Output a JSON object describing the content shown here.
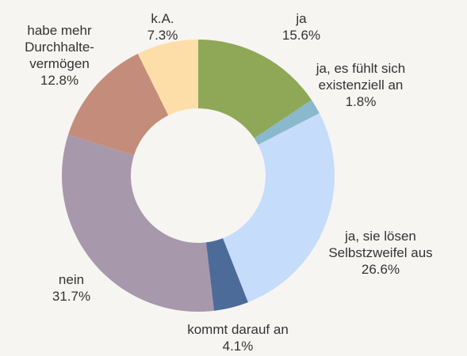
{
  "chart_data": {
    "type": "donut",
    "categories": [
      "ja",
      "ja, es fühlt sich existenziell an",
      "ja, sie lösen Selbstzweifel aus",
      "kommt darauf an",
      "nein",
      "habe mehr Durchhalte-vermögen",
      "k.A."
    ],
    "values": [
      15.6,
      1.8,
      26.6,
      4.1,
      31.7,
      12.8,
      7.3
    ],
    "value_labels": [
      "15.6%",
      "1.8%",
      "26.6%",
      "4.1%",
      "31.7%",
      "12.8%",
      "7.3%"
    ],
    "colors": [
      "#8fa858",
      "#8ab8cc",
      "#c5dcfa",
      "#4d6b99",
      "#a898ab",
      "#c48c7a",
      "#fddea8"
    ]
  }
}
